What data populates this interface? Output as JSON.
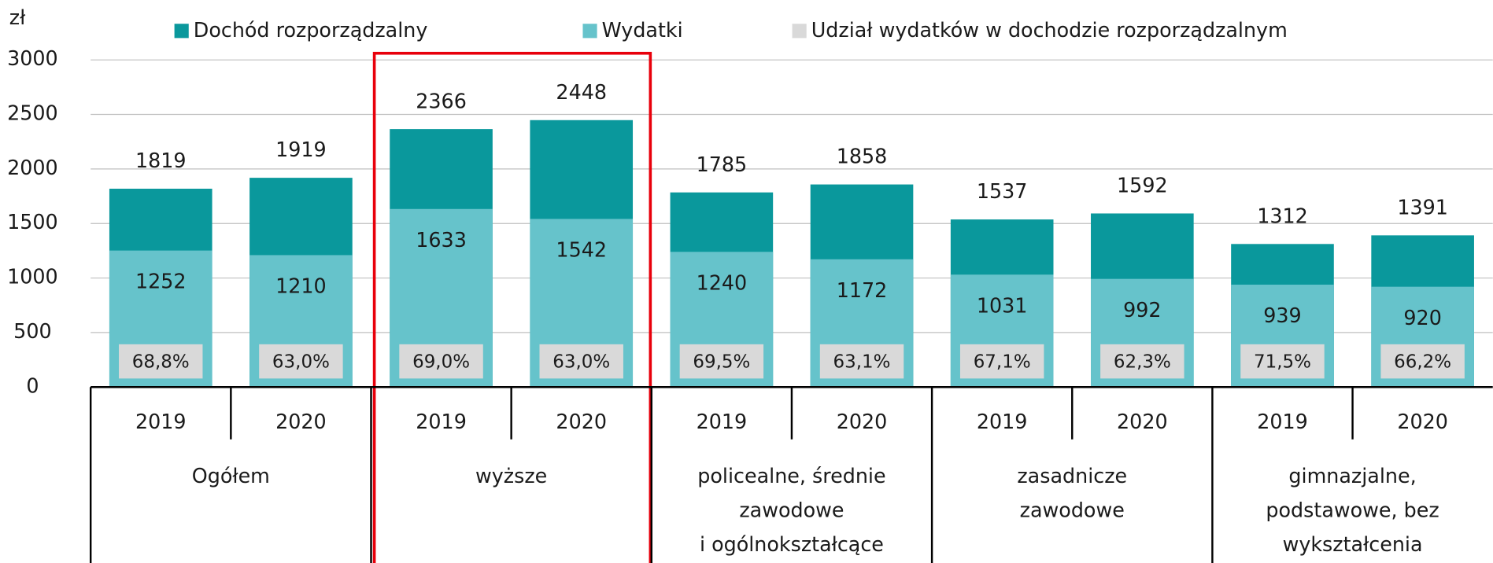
{
  "chart_data": {
    "type": "overlap_bar",
    "y_axis_label": "zł",
    "categories": [
      "2019",
      "2020",
      "2019",
      "2020",
      "2019",
      "2020",
      "2019",
      "2020",
      "2019",
      "2020"
    ],
    "groups": [
      "Ogółem",
      "wyższe",
      "policealne, średnie\nzawodowe\ni ogólnokształcące",
      "zasadnicze\nzawodowe",
      "gimnazjalne,\npodstawowe, bez\nwykształcenia"
    ],
    "series": [
      {
        "name": "Dochód rozporządzalny",
        "color": "#0a989c",
        "values": [
          1819,
          1919,
          2366,
          2448,
          1785,
          1858,
          1537,
          1592,
          1312,
          1391
        ]
      },
      {
        "name": "Wydatki",
        "color": "#66c3cb",
        "values": [
          1252,
          1210,
          1633,
          1542,
          1240,
          1172,
          1031,
          992,
          939,
          920
        ]
      },
      {
        "name": "Udział wydatków w dochodzie rozporządzalnym",
        "color": "#d9d9d9",
        "values": [
          68.8,
          63.0,
          69.0,
          63.0,
          69.5,
          63.1,
          67.1,
          62.3,
          71.5,
          66.2
        ],
        "value_labels": [
          "68,8%",
          "63,0%",
          "69,0%",
          "63,0%",
          "69,5%",
          "63,1%",
          "67,1%",
          "62,3%",
          "71,5%",
          "66,2%"
        ]
      }
    ],
    "ylim": [
      0,
      3000
    ],
    "yticks": [
      0,
      500,
      1000,
      1500,
      2000,
      2500,
      3000
    ],
    "grid": true
  }
}
